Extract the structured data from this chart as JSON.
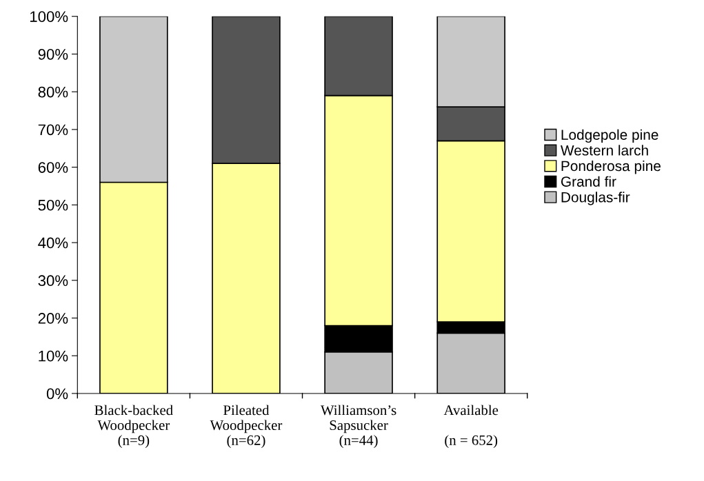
{
  "chart_data": {
    "type": "bar",
    "stacked": true,
    "categories": [
      "Black-backed\nWoodpecker\n(n=9)",
      "Pileated\nWoodpecker\n(n=62)",
      "Williamson’s\nSapsucker\n(n=44)",
      "Available\n\n(n = 652)"
    ],
    "series": [
      {
        "name": "Douglas-fir",
        "color": "#c0c0c0",
        "values": [
          0,
          0,
          11,
          16
        ]
      },
      {
        "name": "Grand fir",
        "color": "#000000",
        "values": [
          0,
          0,
          7,
          3
        ]
      },
      {
        "name": "Ponderosa pine",
        "color": "#ffff99",
        "values": [
          56,
          61,
          61,
          48
        ]
      },
      {
        "name": "Western larch",
        "color": "#555555",
        "values": [
          0,
          39,
          21,
          9
        ]
      },
      {
        "name": "Lodgepole pine",
        "color": "#c8c8c8",
        "values": [
          44,
          0,
          0,
          24
        ]
      }
    ],
    "ylim": [
      0,
      100
    ],
    "yticks": [
      {
        "value": 0,
        "label": "0%"
      },
      {
        "value": 10,
        "label": "10%"
      },
      {
        "value": 20,
        "label": "20%"
      },
      {
        "value": 30,
        "label": "30%"
      },
      {
        "value": 40,
        "label": "40%"
      },
      {
        "value": 50,
        "label": "50%"
      },
      {
        "value": 60,
        "label": "60%"
      },
      {
        "value": 70,
        "label": "70%"
      },
      {
        "value": 80,
        "label": "80%"
      },
      {
        "value": 90,
        "label": "90%"
      },
      {
        "value": 100,
        "label": "100%"
      }
    ],
    "legend": "right",
    "grid": false
  }
}
